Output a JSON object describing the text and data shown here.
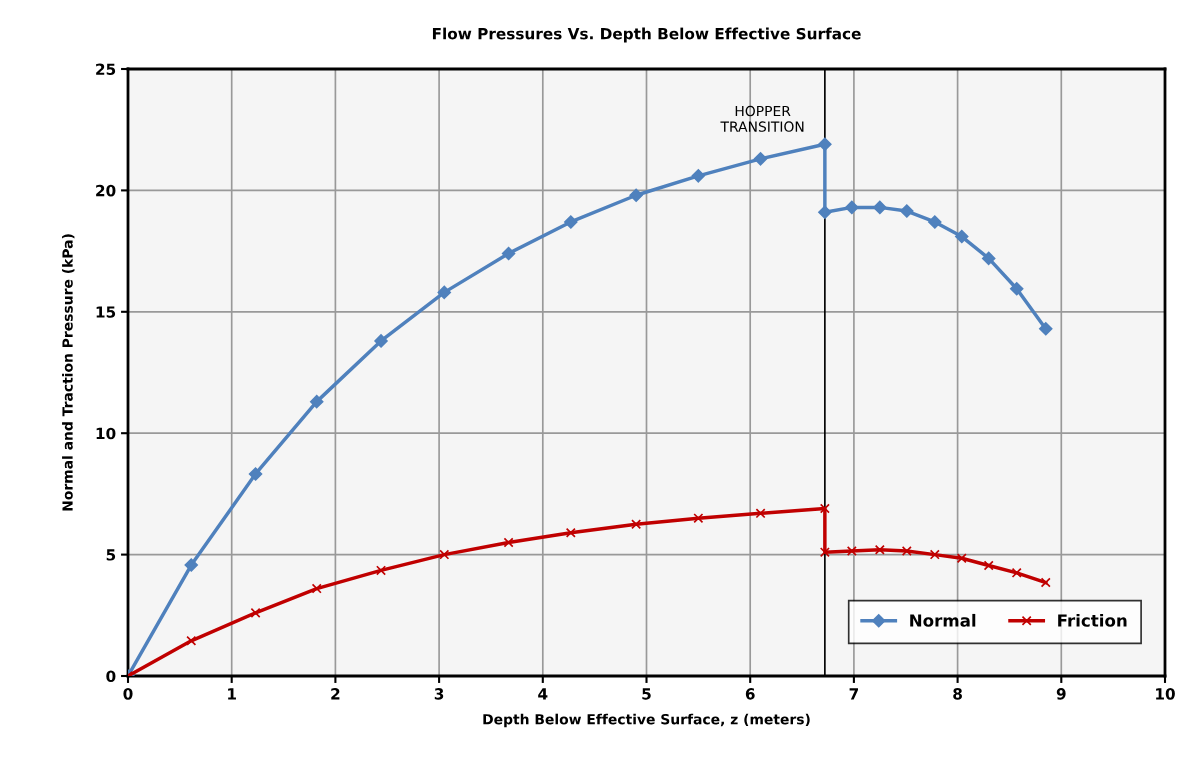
{
  "chart_data": {
    "type": "line",
    "title": "Flow Pressures Vs. Depth Below Effective Surface",
    "xlabel": "Depth Below Effective Surface, z (meters)",
    "ylabel": "Normal and Traction Pressure (kPa)",
    "xlim": [
      0,
      10
    ],
    "xticks": [
      0,
      1,
      2,
      3,
      4,
      5,
      6,
      7,
      8,
      9,
      10
    ],
    "ylim": [
      0,
      25
    ],
    "yticks": [
      0,
      5,
      10,
      15,
      20,
      25
    ],
    "grid": true,
    "legend": "bottom right",
    "line_style": "solid",
    "ref_lines": [
      {
        "axis": "x",
        "value": 6.72,
        "label": "HOPPER\nTRANSITION",
        "color": "#000000"
      }
    ],
    "series": [
      {
        "name": "Normal",
        "color": "#4f81bd",
        "marker": "diamond",
        "x": [
          0,
          0.61,
          1.23,
          1.82,
          2.44,
          3.05,
          3.67,
          4.27,
          4.9,
          5.5,
          6.1,
          6.72,
          6.72,
          6.98,
          7.25,
          7.51,
          7.78,
          8.04,
          8.3,
          8.57,
          8.85
        ],
        "values": [
          0,
          4.57,
          8.32,
          11.3,
          13.8,
          15.8,
          17.4,
          18.7,
          19.8,
          20.6,
          21.3,
          21.9,
          19.1,
          19.3,
          19.3,
          19.15,
          18.7,
          18.1,
          17.2,
          15.95,
          14.3
        ]
      },
      {
        "name": "Friction",
        "color": "#c00000",
        "marker": "cross",
        "x": [
          0,
          0.61,
          1.23,
          1.82,
          2.44,
          3.05,
          3.67,
          4.27,
          4.9,
          5.5,
          6.1,
          6.72,
          6.72,
          6.98,
          7.25,
          7.51,
          7.78,
          8.04,
          8.3,
          8.57,
          8.85
        ],
        "values": [
          0,
          1.45,
          2.6,
          3.6,
          4.35,
          5.0,
          5.5,
          5.9,
          6.25,
          6.5,
          6.7,
          6.9,
          5.1,
          5.15,
          5.2,
          5.15,
          5.0,
          4.85,
          4.55,
          4.25,
          3.85
        ]
      }
    ]
  }
}
